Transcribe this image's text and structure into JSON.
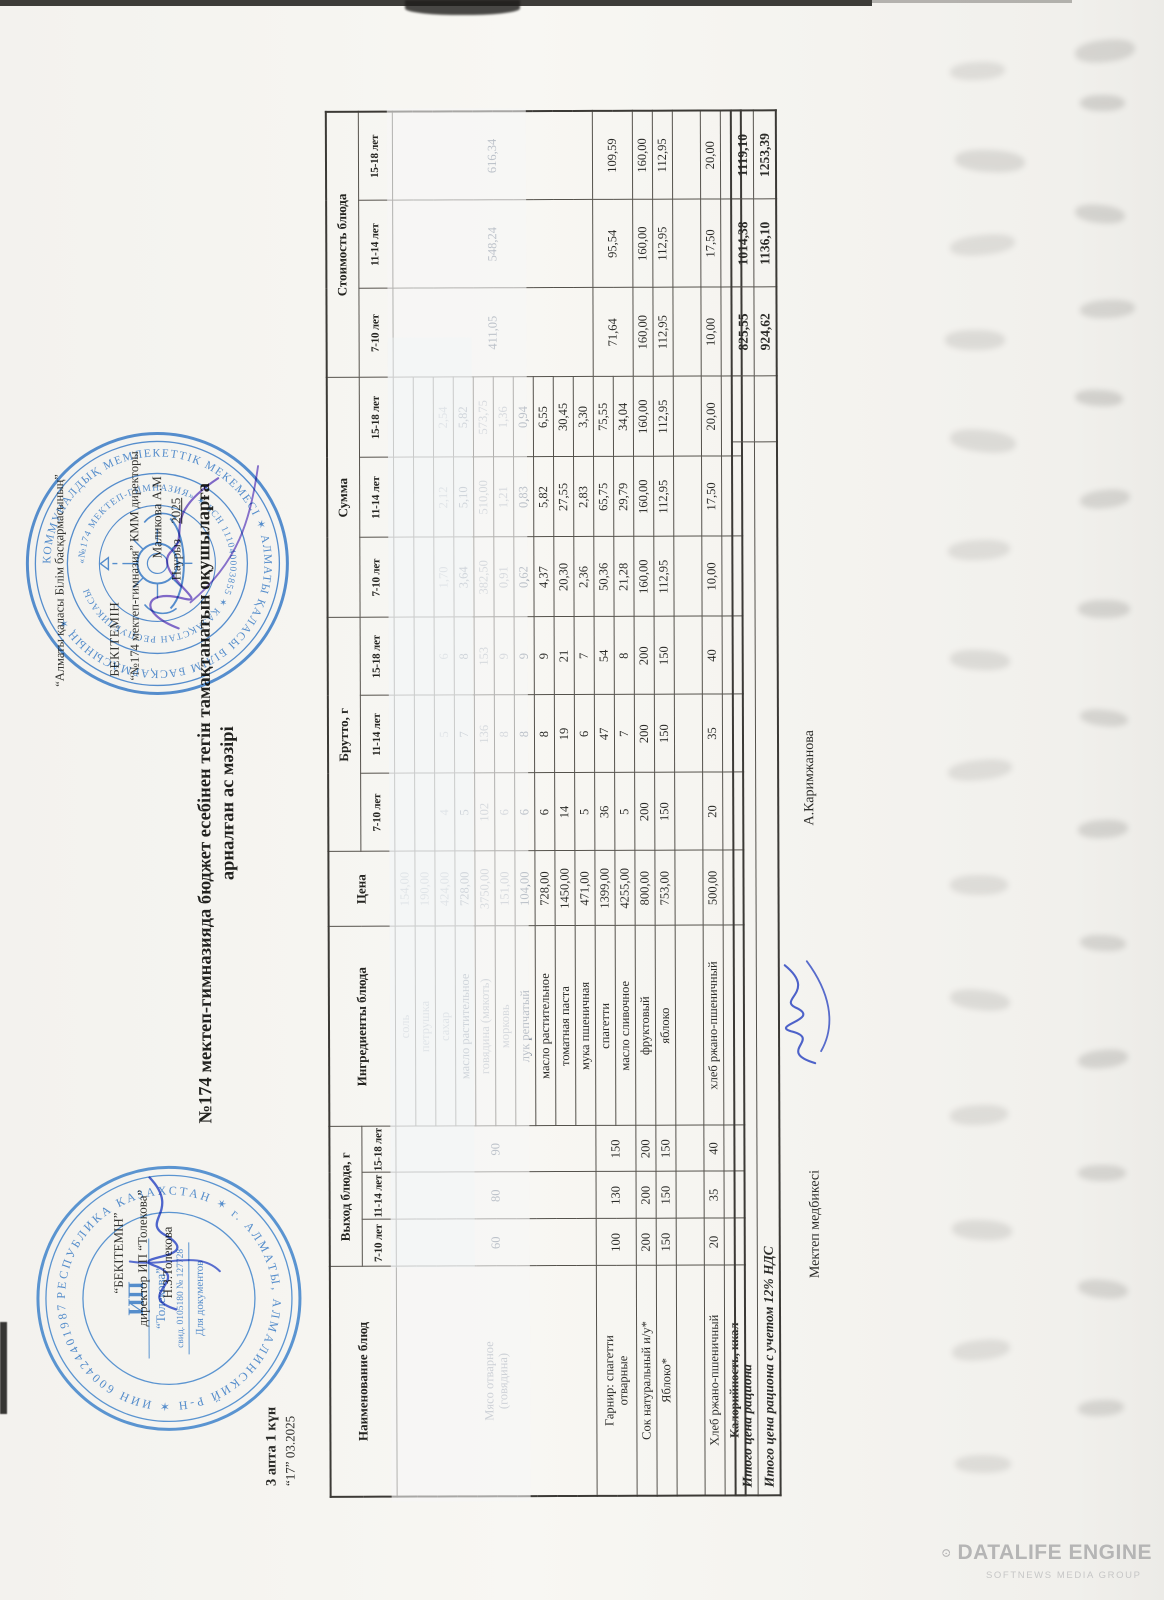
{
  "approval_left": {
    "line1": "“БЕКІТЕМІН”",
    "line2": "директор ИП “Толекова”",
    "line3": "Н.З.Толекова"
  },
  "approval_right": {
    "line1": "“Алматы қаласы Білім басқармасының”",
    "line2": "БЕКІТЕМІН",
    "line3": "“№174 мектеп-гимназия” КММ директоры",
    "line4": "Маликова А.М",
    "month": "Наурыз",
    "year": "2025"
  },
  "title": {
    "line1": "№174 мектеп-гимназияда бюджет есебінен тегін тамақтанатын оқушыларға",
    "line2": "арналған ас мәзірі"
  },
  "date": {
    "line1": "3 апта 1 күн",
    "line2": "“17” 03.2025"
  },
  "stamp_left": {
    "ring": "РЕСПУБЛИКА КАЗАХСТАН ✶ г. АЛМАТЫ, АЛМАЛИНСКИЙ Р-Н ✶ ИИН 600424401987 ✶",
    "center1": "ИП",
    "center2": "“Толекова”",
    "center3": "свид. 0105180 № 127728",
    "center4": "Для документов"
  },
  "stamp_right": {
    "ring_outer": "КОММУНАЛДЫҚ МЕМЛЕКЕТТІК МЕКЕМЕСІ ✶ АЛМАТЫ ҚАЛАСЫ БІЛІМ БАСҚАРМАСЫНЫҢ ✶",
    "ring_inner": "«№174 МЕКТЕП-ГИМНАЗИЯ» ✶ БСН 111040003855 ✶ ҚАЗАҚСТАН РЕСПУБЛИКАСЫ"
  },
  "table": {
    "headers": {
      "name": "Наименование блюд",
      "out": "Выход блюда, г",
      "ingredients": "Ингредиенты блюда",
      "price": "Цена",
      "brutto": "Брутто, г",
      "sum": "Сумма",
      "cost": "Стоимость блюда",
      "ages": [
        "7-10 лет",
        "11-14 лет",
        "15-18 лет"
      ]
    },
    "blocks": [
      {
        "name": "Мясо отварное\n(говядина)",
        "wash": true,
        "out": [
          "60",
          "80",
          "90"
        ],
        "rows": [
          {
            "ing": "соль",
            "price": "154,00",
            "b": [
              "",
              "",
              ""
            ],
            "s": [
              "",
              "",
              ""
            ],
            "f": "f1"
          },
          {
            "ing": "петрушка",
            "price": "190,00",
            "b": [
              "",
              "",
              ""
            ],
            "s": [
              "",
              "",
              ""
            ],
            "f": "f1"
          },
          {
            "ing": "сахар",
            "price": "424,00",
            "b": [
              "4",
              "5",
              "6"
            ],
            "s": [
              "1,70",
              "2,12",
              "2,54"
            ],
            "f": "f1"
          },
          {
            "ing": "масло растительное",
            "price": "728,00",
            "b": [
              "5",
              "7",
              "8"
            ],
            "s": [
              "3,64",
              "5,10",
              "5,82"
            ],
            "f": "f2"
          },
          {
            "ing": "говядина (мякоть)",
            "price": "3750,00",
            "b": [
              "102",
              "136",
              "153"
            ],
            "s": [
              "382,50",
              "510,00",
              "573,75"
            ],
            "f": "f1"
          },
          {
            "ing": "морковь",
            "price": "151,00",
            "b": [
              "6",
              "8",
              "9"
            ],
            "s": [
              "0,91",
              "1,21",
              "1,36"
            ],
            "f": "f1"
          },
          {
            "ing": "лук репчатый",
            "price": "104,00",
            "b": [
              "6",
              "8",
              "9"
            ],
            "s": [
              "0,62",
              "0,83",
              "0,94"
            ],
            "f": "f2"
          },
          {
            "ing": "масло растительное",
            "price": "728,00",
            "b": [
              "6",
              "8",
              "9"
            ],
            "s": [
              "4,37",
              "5,82",
              "6,55"
            ]
          },
          {
            "ing": "томатная паста",
            "price": "1450,00",
            "b": [
              "14",
              "19",
              "21"
            ],
            "s": [
              "20,30",
              "27,55",
              "30,45"
            ]
          },
          {
            "ing": "мука пшеничная",
            "price": "471,00",
            "b": [
              "5",
              "6",
              "7"
            ],
            "s": [
              "2,36",
              "2,83",
              "3,30"
            ]
          }
        ],
        "cost": [
          "411,05",
          "548,24",
          "616,34"
        ]
      },
      {
        "name": "Гарнир: спагетти\nотварные",
        "out": [
          "100",
          "130",
          "150"
        ],
        "rows": [
          {
            "ing": "спагетти",
            "price": "1399,00",
            "b": [
              "36",
              "47",
              "54"
            ],
            "s": [
              "50,36",
              "65,75",
              "75,55"
            ]
          },
          {
            "ing": "масло сливочное",
            "price": "4255,00",
            "b": [
              "5",
              "7",
              "8"
            ],
            "s": [
              "21,28",
              "29,79",
              "34,04"
            ]
          }
        ],
        "cost": [
          "71,64",
          "95,54",
          "109,59"
        ]
      },
      {
        "name": "Сок натуральный и/у*",
        "out": [
          "200",
          "200",
          "200"
        ],
        "rows": [
          {
            "ing": "фруктовый",
            "price": "800,00",
            "b": [
              "200",
              "200",
              "200"
            ],
            "s": [
              "160,00",
              "160,00",
              "160,00"
            ]
          }
        ],
        "cost": [
          "160,00",
          "160,00",
          "160,00"
        ]
      },
      {
        "name": "Яблоко*",
        "out": [
          "150",
          "150",
          "150"
        ],
        "rows": [
          {
            "ing": "яблоко",
            "price": "753,00",
            "b": [
              "150",
              "150",
              "150"
            ],
            "s": [
              "112,95",
              "112,95",
              "112,95"
            ]
          }
        ],
        "cost": [
          "112,95",
          "112,95",
          "112,95"
        ]
      },
      {
        "name": "",
        "spacer": true,
        "out": [
          "",
          "",
          ""
        ],
        "rows": [
          {
            "ing": "",
            "price": "",
            "b": [
              "",
              "",
              ""
            ],
            "s": [
              "",
              "",
              ""
            ]
          }
        ],
        "cost": [
          "",
          "",
          ""
        ]
      },
      {
        "name": "Хлеб ржано-пшеничный",
        "out": [
          "20",
          "35",
          "40"
        ],
        "rows": [
          {
            "ing": "хлеб ржано-пшеничный",
            "price": "500,00",
            "b": [
              "20",
              "35",
              "40"
            ],
            "s": [
              "10,00",
              "17,50",
              "20,00"
            ]
          }
        ],
        "cost": [
          "10,00",
          "17,50",
          "20,00"
        ]
      },
      {
        "name": "Калорийность, ккал",
        "bold": true,
        "out": [
          "",
          "",
          ""
        ],
        "rows": [
          {
            "ing": "",
            "price": "",
            "b": [
              "",
              "",
              ""
            ],
            "s": [
              "",
              "",
              ""
            ]
          }
        ],
        "cost": [
          "",
          "",
          ""
        ]
      }
    ],
    "totals": [
      {
        "label": "Итого цена рациона",
        "values": [
          "825,55",
          "1014,38",
          "1119,10"
        ]
      },
      {
        "label": "Итого цена рациона с учетом 12% НДС",
        "values": [
          "924,62",
          "1136,10",
          "1253,39"
        ]
      }
    ]
  },
  "nurse": {
    "label": "Мектеп медбикесі",
    "name": "А.Каримжанова"
  },
  "watermark": {
    "title": "DATALIFE ENGINE",
    "subtitle": "SOFTNEWS MEDIA GROUP"
  }
}
